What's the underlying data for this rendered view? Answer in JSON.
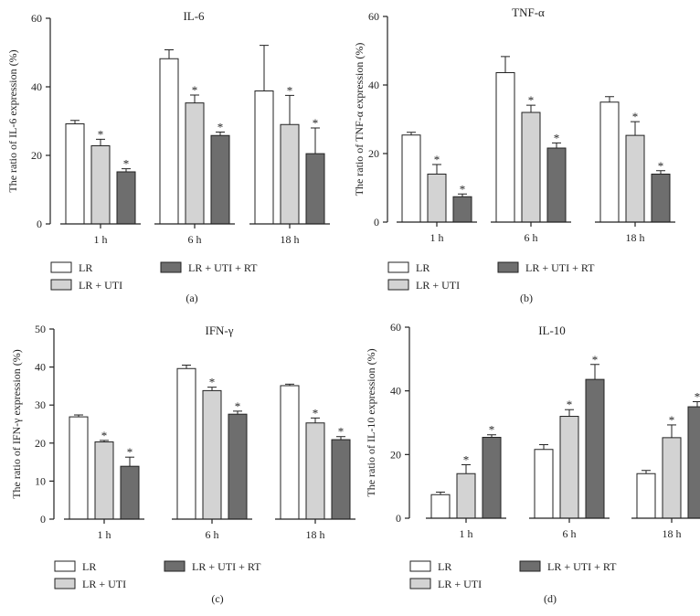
{
  "colors": {
    "LR": "#ffffff",
    "LR + UTI": "#d3d3d3",
    "LR + UTI + RT": "#6e6e6e",
    "axis": "#222222"
  },
  "chart_data": [
    {
      "type": "bar",
      "panel": "(a)",
      "title": "IL-6",
      "ylabel": "The ratio of IL-6 expression (%)",
      "xlabel": "",
      "categories": [
        "1 h",
        "6 h",
        "18 h"
      ],
      "ylim": [
        0,
        60
      ],
      "yticks": [
        "0",
        "20",
        "40",
        "60"
      ],
      "series": [
        {
          "name": "LR",
          "values": [
            29.2,
            48.2,
            38.8
          ],
          "errors": [
            1.0,
            2.6,
            13.3
          ],
          "sig": [
            false,
            false,
            false
          ]
        },
        {
          "name": "LR + UTI",
          "values": [
            22.8,
            35.3,
            29.0
          ],
          "errors": [
            1.9,
            2.3,
            8.5
          ],
          "sig": [
            true,
            true,
            true
          ]
        },
        {
          "name": "LR + UTI + RT",
          "values": [
            15.2,
            25.8,
            20.5
          ],
          "errors": [
            0.9,
            1.0,
            7.5
          ],
          "sig": [
            true,
            true,
            true
          ]
        }
      ],
      "legend": [
        "LR",
        "LR + UTI",
        "LR + UTI + RT"
      ]
    },
    {
      "type": "bar",
      "panel": "(b)",
      "title": "TNF-α",
      "ylabel": "The ratio of TNF-α expression (%)",
      "xlabel": "",
      "categories": [
        "1 h",
        "6 h",
        "18 h"
      ],
      "ylim": [
        0,
        60
      ],
      "yticks": [
        "0",
        "20",
        "40",
        "60"
      ],
      "series": [
        {
          "name": "LR",
          "values": [
            25.4,
            43.6,
            35.0
          ],
          "errors": [
            0.8,
            4.7,
            1.6
          ],
          "sig": [
            false,
            false,
            false
          ]
        },
        {
          "name": "LR + UTI",
          "values": [
            14.0,
            32.0,
            25.3
          ],
          "errors": [
            2.8,
            2.1,
            4.0
          ],
          "sig": [
            true,
            true,
            true
          ]
        },
        {
          "name": "LR + UTI + RT",
          "values": [
            7.4,
            21.6,
            14.0
          ],
          "errors": [
            0.8,
            1.5,
            1.0
          ],
          "sig": [
            true,
            true,
            true
          ]
        }
      ],
      "legend": [
        "LR",
        "LR + UTI",
        "LR + UTI + RT"
      ]
    },
    {
      "type": "bar",
      "panel": "(c)",
      "title": "IFN-γ",
      "ylabel": "The ratio of IFN-γ expression (%)",
      "xlabel": "",
      "categories": [
        "1 h",
        "6 h",
        "18 h"
      ],
      "ylim": [
        0,
        50
      ],
      "yticks": [
        "0",
        "10",
        "20",
        "30",
        "40",
        "50"
      ],
      "series": [
        {
          "name": "LR",
          "values": [
            26.9,
            39.6,
            35.1
          ],
          "errors": [
            0.5,
            0.9,
            0.4
          ],
          "sig": [
            false,
            false,
            false
          ]
        },
        {
          "name": "LR + UTI",
          "values": [
            20.3,
            33.8,
            25.3
          ],
          "errors": [
            0.4,
            0.9,
            1.3
          ],
          "sig": [
            true,
            true,
            true
          ]
        },
        {
          "name": "LR + UTI + RT",
          "values": [
            13.9,
            27.6,
            20.9
          ],
          "errors": [
            2.4,
            0.8,
            0.8
          ],
          "sig": [
            true,
            true,
            true
          ]
        }
      ],
      "legend": [
        "LR",
        "LR + UTI",
        "LR + UTI + RT"
      ]
    },
    {
      "type": "bar",
      "panel": "(d)",
      "title": "IL-10",
      "ylabel": "The ratio of IL-10 expression (%)",
      "xlabel": "",
      "categories": [
        "1 h",
        "6 h",
        "18 h"
      ],
      "ylim": [
        0,
        60
      ],
      "yticks": [
        "0",
        "20",
        "40",
        "60"
      ],
      "series": [
        {
          "name": "LR",
          "values": [
            7.4,
            21.6,
            14.0
          ],
          "errors": [
            0.8,
            1.5,
            1.0
          ],
          "sig": [
            false,
            false,
            false
          ]
        },
        {
          "name": "LR + UTI",
          "values": [
            14.0,
            32.0,
            25.3
          ],
          "errors": [
            2.8,
            2.1,
            4.0
          ],
          "sig": [
            true,
            true,
            true
          ]
        },
        {
          "name": "LR + UTI + RT",
          "values": [
            25.4,
            43.6,
            35.0
          ],
          "errors": [
            0.8,
            4.7,
            1.6
          ],
          "sig": [
            true,
            true,
            true
          ]
        }
      ],
      "legend": [
        "LR",
        "LR + UTI",
        "LR + UTI + RT"
      ]
    }
  ]
}
